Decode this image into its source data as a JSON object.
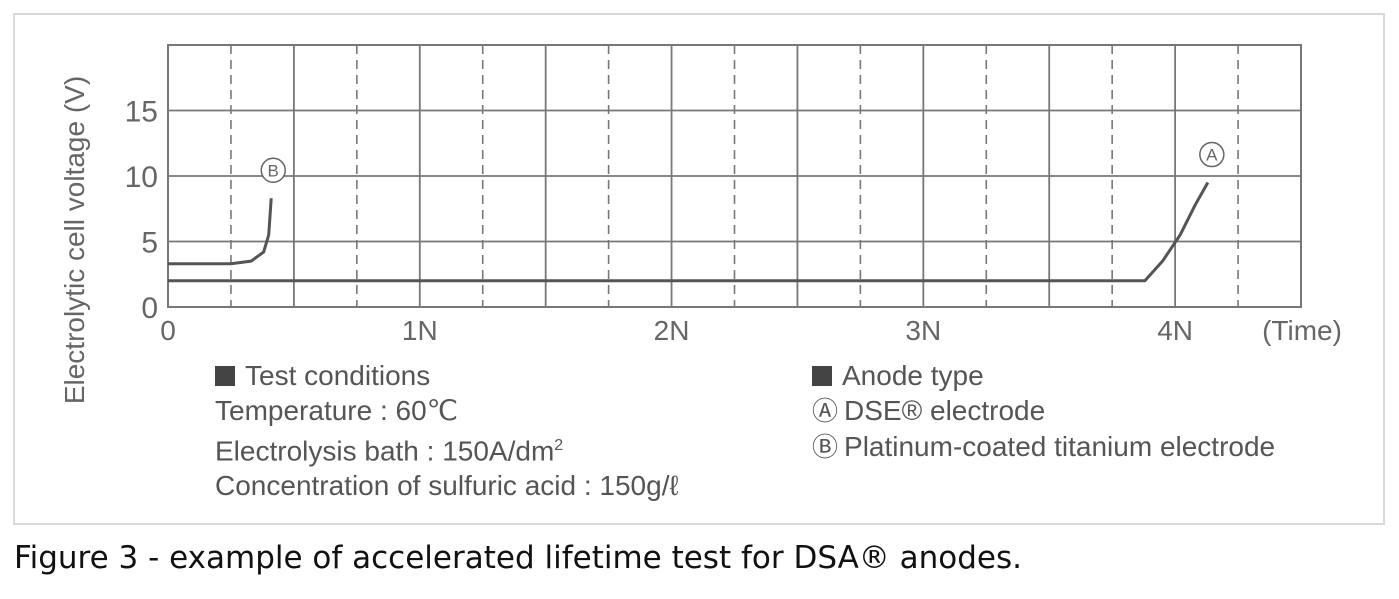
{
  "chart_data": {
    "type": "line",
    "title": "",
    "ylabel": "Electrolytic cell voltage (V)",
    "xlabel": "(Time)",
    "x_ticks": [
      "0",
      "1N",
      "2N",
      "3N",
      "4N"
    ],
    "y_ticks": [
      "0",
      "5",
      "10",
      "15"
    ],
    "xlim": [
      0,
      4.5
    ],
    "ylim": [
      0,
      20
    ],
    "grid": true,
    "series": [
      {
        "name": "Ⓐ",
        "color": "#555555",
        "points": [
          [
            0,
            2
          ],
          [
            3.88,
            2
          ],
          [
            3.95,
            3.5
          ],
          [
            4.02,
            5.5
          ],
          [
            4.08,
            7.8
          ],
          [
            4.13,
            9.5
          ]
        ]
      },
      {
        "name": "Ⓑ",
        "color": "#555555",
        "points": [
          [
            0,
            3.3
          ],
          [
            0.25,
            3.3
          ],
          [
            0.33,
            3.5
          ],
          [
            0.38,
            4.2
          ],
          [
            0.4,
            5.5
          ],
          [
            0.41,
            8.3
          ]
        ]
      }
    ]
  },
  "conditions": {
    "heading": "Test conditions",
    "temperature": "Temperature : 60℃",
    "bath_prefix": "Electrolysis bath : 150A/dm",
    "bath_sup": "2",
    "acid": "Concentration of sulfuric acid : 150g/ℓ"
  },
  "anode": {
    "heading": "Anode type",
    "a_mark": "Ⓐ",
    "a_label": "DSE® electrode",
    "b_mark": "Ⓑ",
    "b_label": "Platinum-coated titanium electrode"
  },
  "caption": "Figure 3 - example of accelerated lifetime test for DSA® anodes."
}
